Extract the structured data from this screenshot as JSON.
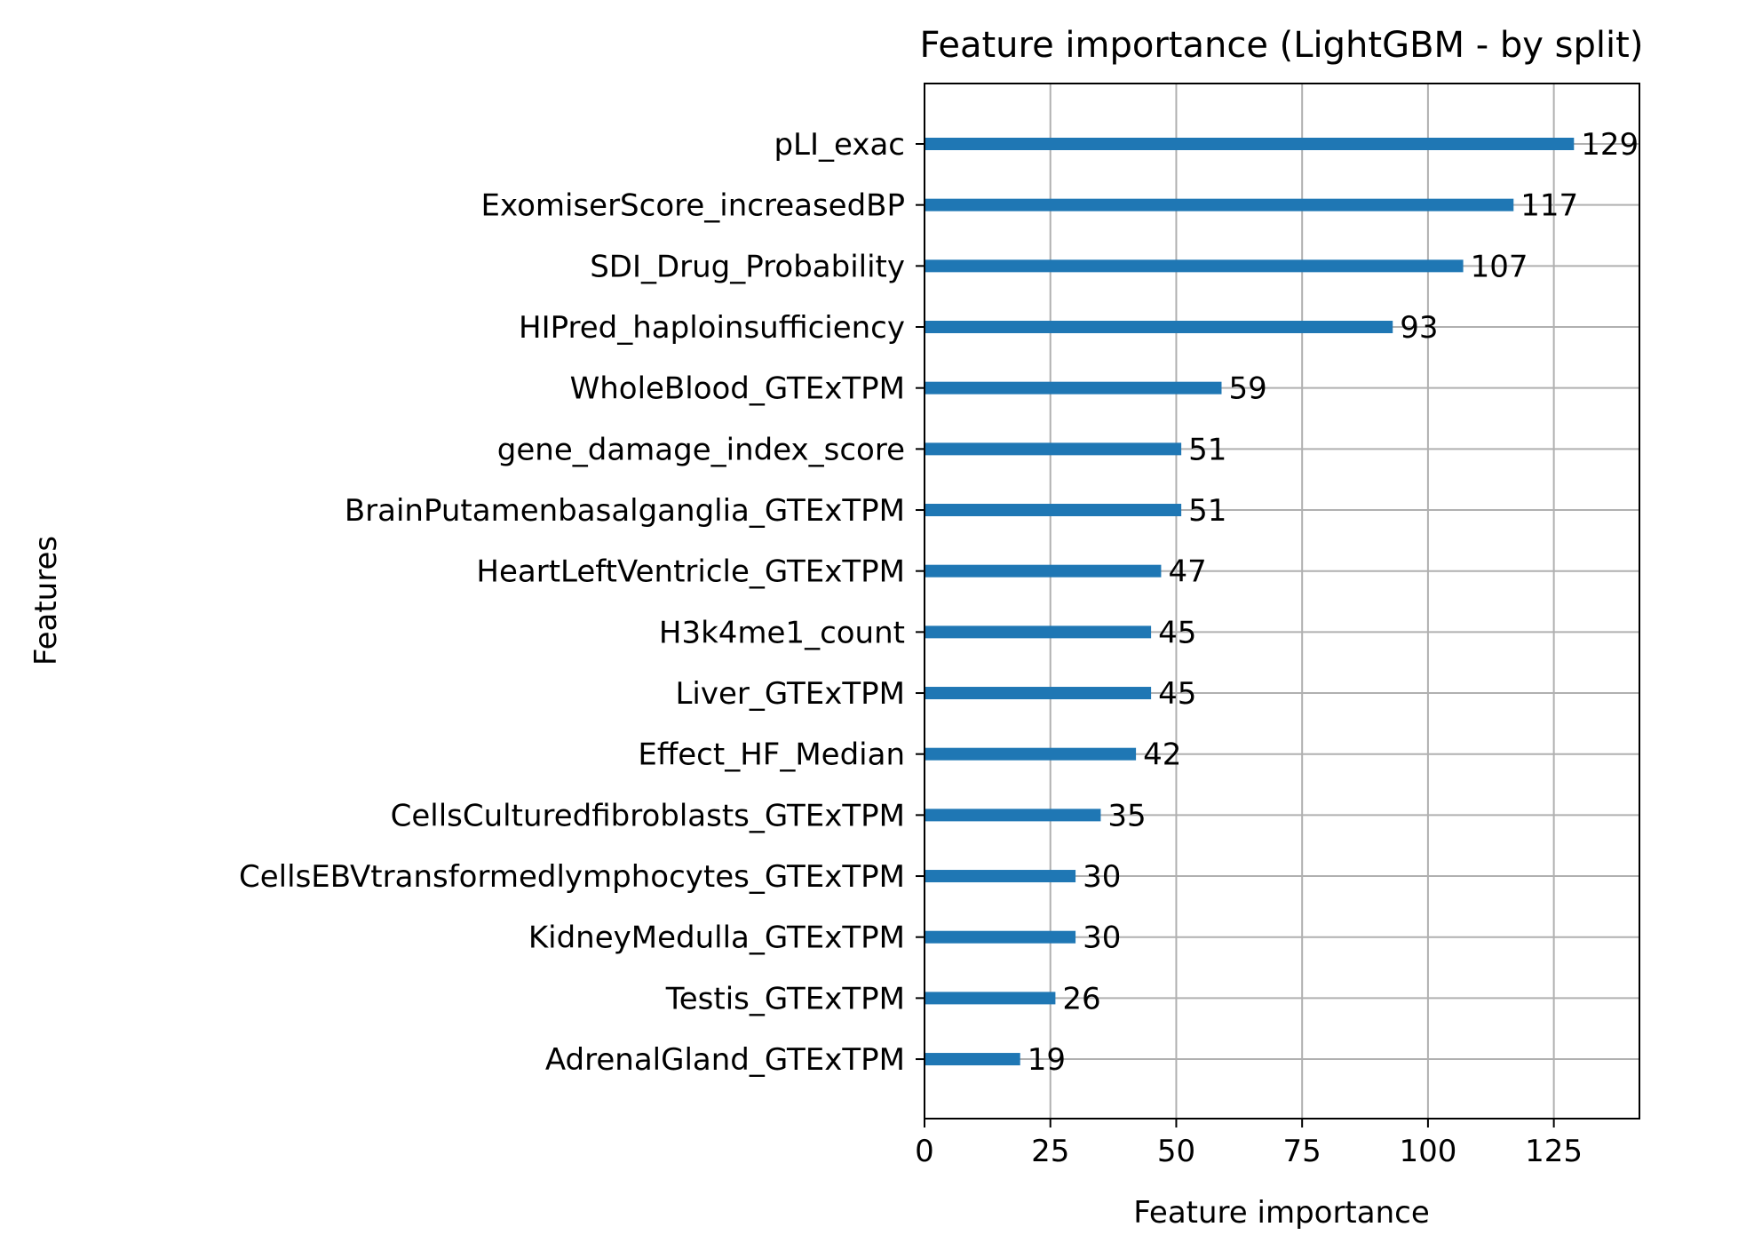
{
  "chart_data": {
    "type": "bar",
    "orientation": "horizontal",
    "title": "Feature importance (LightGBM - by split)",
    "xlabel": "Feature importance",
    "ylabel": "Features",
    "xlim": [
      0,
      142
    ],
    "xticks": [
      0,
      25,
      50,
      75,
      100,
      125
    ],
    "grid": true,
    "bar_color": "#1f77b4",
    "categories": [
      "pLI_exac",
      "ExomiserScore_increasedBP",
      "SDI_Drug_Probability",
      "HIPred_haploinsufficiency",
      "WholeBlood_GTExTPM",
      "gene_damage_index_score",
      "BrainPutamenbasalganglia_GTExTPM",
      "HeartLeftVentricle_GTExTPM",
      "H3k4me1_count",
      "Liver_GTExTPM",
      "Effect_HF_Median",
      "CellsCulturedfibroblasts_GTExTPM",
      "CellsEBVtransformedlymphocytes_GTExTPM",
      "KidneyMedulla_GTExTPM",
      "Testis_GTExTPM",
      "AdrenalGland_GTExTPM"
    ],
    "values": [
      129,
      117,
      107,
      93,
      59,
      51,
      51,
      47,
      45,
      45,
      42,
      35,
      30,
      30,
      26,
      19
    ]
  }
}
